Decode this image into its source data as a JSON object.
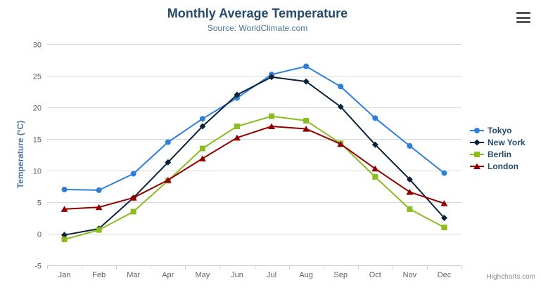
{
  "title": "Monthly Average Temperature",
  "subtitle": "Source: WorldClimate.com",
  "credits": "Highcharts.com",
  "chart_data": {
    "type": "line",
    "title": "Monthly Average Temperature",
    "subtitle": "Source: WorldClimate.com",
    "xlabel": "",
    "ylabel": "Temperature (°C)",
    "ylim": [
      -5,
      30
    ],
    "ytick_step": 5,
    "grid": true,
    "legend_position": "right",
    "categories": [
      "Jan",
      "Feb",
      "Mar",
      "Apr",
      "May",
      "Jun",
      "Jul",
      "Aug",
      "Sep",
      "Oct",
      "Nov",
      "Dec"
    ],
    "series": [
      {
        "name": "Tokyo",
        "color": "#2f7ed8",
        "marker": "circle",
        "values": [
          7.0,
          6.9,
          9.5,
          14.5,
          18.2,
          21.5,
          25.2,
          26.5,
          23.3,
          18.3,
          13.9,
          9.6
        ]
      },
      {
        "name": "New York",
        "color": "#0d233a",
        "marker": "diamond",
        "values": [
          -0.2,
          0.8,
          5.7,
          11.3,
          17.0,
          22.0,
          24.8,
          24.1,
          20.1,
          14.1,
          8.6,
          2.5
        ]
      },
      {
        "name": "Berlin",
        "color": "#8bbc21",
        "marker": "square",
        "values": [
          -0.9,
          0.6,
          3.5,
          8.4,
          13.5,
          17.0,
          18.6,
          17.9,
          14.3,
          9.0,
          3.9,
          1.0
        ]
      },
      {
        "name": "London",
        "color": "#910000",
        "marker": "triangle",
        "values": [
          3.9,
          4.2,
          5.7,
          8.5,
          11.9,
          15.2,
          17.0,
          16.6,
          14.2,
          10.3,
          6.6,
          4.8
        ]
      }
    ]
  },
  "styles": {
    "title_color": "#274b6d",
    "subtitle_color": "#4d759e",
    "axis_title_color": "#4d759e",
    "axis_label_color": "#606060",
    "grid_color": "#d8d8d8",
    "axis_line_color": "#c0d0e0",
    "legend_text_color": "#274b6d",
    "credits_color": "#909090"
  }
}
